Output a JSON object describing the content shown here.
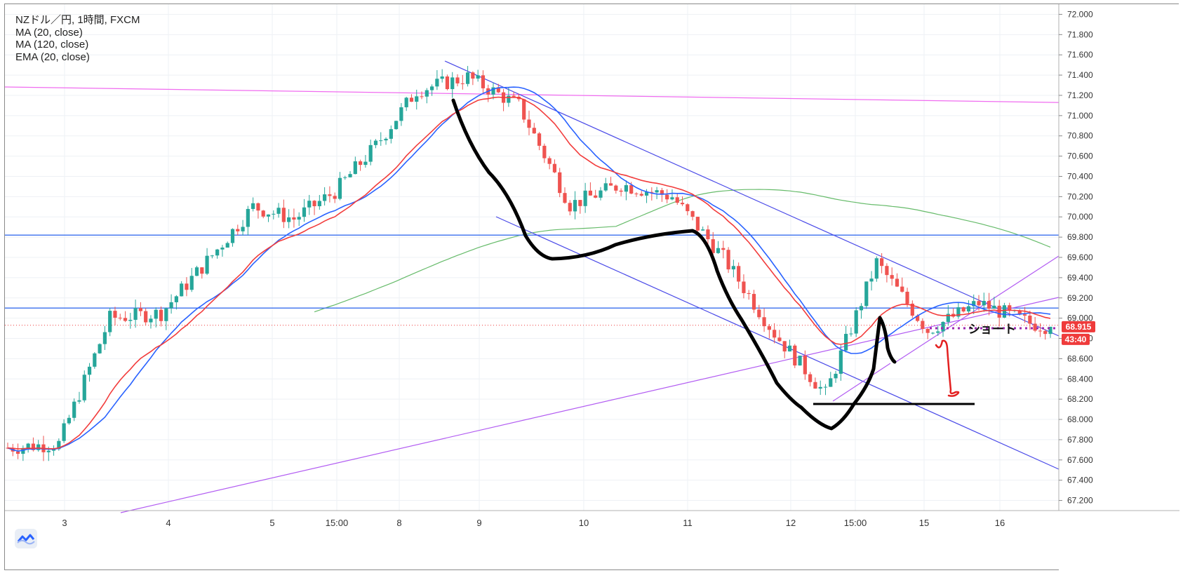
{
  "legend": {
    "symbol": "NZドル／円, 1時間, FXCM",
    "ma20": "MA (20, close)",
    "ma120": "MA (120, close)",
    "ema20": "EMA (20, close)"
  },
  "colors": {
    "up": "#26a69a",
    "down": "#ef5350",
    "ma20": "#2962ff",
    "ema20": "#f23c3c",
    "ma120": "#66bb6a",
    "channel": "#4a4ae8",
    "trend": "#b25cf2",
    "level": "#4a7bef",
    "resistance": "#f06cf0",
    "drawing": "#000000",
    "short_line": "#9c27b0",
    "price_tag": "#ef3b3b"
  },
  "annotation": {
    "short_label": "ショート"
  },
  "chart_data": {
    "type": "candlestick",
    "title": "NZドル／円, 1時間, FXCM",
    "x_tick_labels": [
      "3",
      "4",
      "5",
      "15:00",
      "8",
      "9",
      "10",
      "11",
      "12",
      "15:00",
      "15",
      "16"
    ],
    "y_tick_labels": [
      "72.000",
      "71.800",
      "71.600",
      "71.400",
      "71.200",
      "71.000",
      "70.800",
      "70.600",
      "70.400",
      "70.200",
      "70.000",
      "69.800",
      "69.600",
      "69.400",
      "69.200",
      "69.000",
      "68.800",
      "68.600",
      "68.400",
      "68.200",
      "68.000",
      "67.800",
      "67.600",
      "67.400",
      "67.200"
    ],
    "ylim": [
      67.1,
      72.1
    ],
    "grid": true,
    "current_price": "68.915",
    "countdown": "43:40",
    "x_keypoints": [
      0,
      10,
      20,
      30,
      40,
      48,
      56,
      64,
      72,
      80,
      90,
      100,
      110,
      120,
      130,
      140,
      150,
      160,
      170,
      180,
      190,
      200,
      204
    ],
    "close_keypoints": [
      67.72,
      67.76,
      69.0,
      69.05,
      69.62,
      70.1,
      69.98,
      70.25,
      70.7,
      71.25,
      71.38,
      71.1,
      70.12,
      70.32,
      70.2,
      69.6,
      68.85,
      68.25,
      69.55,
      68.88,
      69.15,
      68.95,
      68.915
    ],
    "series": [
      {
        "name": "MA (20, close)"
      },
      {
        "name": "MA (120, close)"
      },
      {
        "name": "EMA (20, close)"
      }
    ],
    "levels": [
      {
        "price": 69.82,
        "kind": "horizontal"
      },
      {
        "price": 69.1,
        "kind": "horizontal"
      },
      {
        "price": 68.93,
        "kind": "dotted-current"
      }
    ]
  }
}
